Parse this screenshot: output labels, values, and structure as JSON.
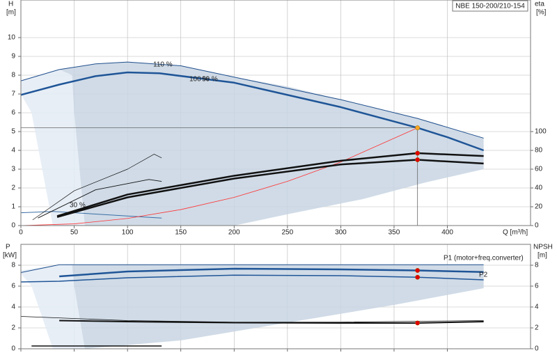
{
  "chart_data": [
    {
      "type": "line",
      "legend_box": "NBE 150-200/210-154",
      "x_label": "Q [m³/h]",
      "y_label": "H",
      "y_unit": "[m]",
      "y2_label": "eta",
      "y2_unit": "[%]",
      "xlim": [
        0,
        478
      ],
      "xticks": [
        0,
        50,
        100,
        150,
        200,
        250,
        300,
        350,
        400
      ],
      "xtick_labels": true,
      "ylim": [
        0,
        12
      ],
      "yticks": [
        0,
        1,
        2,
        3,
        4,
        5,
        6,
        7,
        8,
        9,
        10
      ],
      "y2lim": [
        0,
        240
      ],
      "y2ticks": [
        0,
        20,
        40,
        60,
        80,
        100
      ],
      "grid": true,
      "annotations": [
        "110 %",
        "100 %",
        "90 %",
        "30 %"
      ],
      "series": [
        {
          "kind": "area",
          "color": "#e3ebf4",
          "x": [
            0,
            36,
            48,
            50,
            55,
            60,
            30,
            20,
            10,
            0
          ],
          "values": [
            7.7,
            8.3,
            8.0,
            6,
            3,
            0,
            0,
            3,
            6,
            7.0
          ]
        },
        {
          "kind": "area",
          "color": "#c8d5e3",
          "x": [
            36,
            70,
            100,
            150,
            200,
            250,
            300,
            372,
            434,
            434,
            380,
            320,
            250,
            200,
            60,
            55,
            50,
            48
          ],
          "values": [
            8.3,
            8.6,
            8.7,
            8.5,
            7.9,
            7.4,
            6.7,
            5.7,
            4.65,
            3.0,
            2.3,
            1.4,
            0.6,
            0,
            0,
            3,
            6,
            8.0
          ]
        },
        {
          "kind": "line",
          "color": "#1f4e8c",
          "width": 1,
          "x": [
            0,
            36,
            70,
            100,
            150,
            200,
            300,
            372,
            434
          ],
          "values": [
            7.7,
            8.3,
            8.6,
            8.7,
            8.5,
            7.9,
            6.7,
            5.7,
            4.65
          ]
        },
        {
          "kind": "line",
          "color": "#1f5597",
          "width": 2.5,
          "x": [
            0,
            36,
            70,
            100,
            130,
            200,
            300,
            372,
            400,
            434
          ],
          "values": [
            6.95,
            7.5,
            7.95,
            8.15,
            8.1,
            7.6,
            6.3,
            5.2,
            4.7,
            4.0
          ]
        },
        {
          "kind": "line",
          "color": "#3a6ea5",
          "width": 1,
          "x": [
            0,
            30,
            132
          ],
          "values": [
            0.68,
            0.75,
            0.4
          ]
        },
        {
          "kind": "line",
          "color": "#ff3030",
          "width": 0.8,
          "x": [
            0,
            50,
            100,
            150,
            200,
            250,
            300,
            372
          ],
          "values": [
            0,
            0.09,
            0.38,
            0.85,
            1.5,
            2.35,
            3.38,
            5.2
          ]
        },
        {
          "kind": "line",
          "axis": "y2",
          "color": "#111",
          "width": 2.5,
          "x": [
            34,
            100,
            200,
            300,
            372,
            434
          ],
          "values": [
            10,
            33,
            53,
            69,
            77,
            74
          ]
        },
        {
          "kind": "line",
          "axis": "y2",
          "color": "#111",
          "width": 2.5,
          "x": [
            34,
            100,
            200,
            300,
            372,
            434
          ],
          "values": [
            9,
            30,
            50,
            65,
            70,
            66
          ]
        },
        {
          "kind": "line",
          "axis": "y2",
          "color": "#111",
          "width": 0.7,
          "x": [
            11,
            50,
            100,
            125,
            132
          ],
          "values": [
            6,
            37,
            60,
            76,
            72
          ]
        },
        {
          "kind": "line",
          "axis": "y2",
          "color": "#111",
          "width": 0.9,
          "x": [
            16,
            70,
            120,
            132
          ],
          "values": [
            8,
            38,
            49,
            47
          ]
        },
        {
          "kind": "scatter",
          "color": "#f5a623",
          "guides": true,
          "x": [
            372
          ],
          "values": [
            5.2
          ]
        },
        {
          "kind": "scatter",
          "axis": "y2",
          "color": "#e00000",
          "x": [
            372,
            372
          ],
          "values": [
            77,
            70
          ]
        }
      ]
    },
    {
      "type": "line",
      "y_label": "P",
      "y_unit": "[kW]",
      "y2_label": "NPSH",
      "y2_unit": "[m]",
      "xlim": [
        0,
        478
      ],
      "xticks": [
        0,
        50,
        100,
        150,
        200,
        250,
        300,
        350,
        400
      ],
      "xtick_labels": false,
      "ylim": [
        0,
        10
      ],
      "yticks": [
        0,
        2,
        4,
        6,
        8
      ],
      "y2lim": [
        0,
        10
      ],
      "y2ticks": [
        0,
        2,
        4,
        6,
        8
      ],
      "grid": true,
      "annotations": [
        "P1 (motor+freq.converter)",
        "P2"
      ],
      "series": [
        {
          "kind": "area",
          "color": "#e3ebf4",
          "x": [
            0,
            36,
            48,
            50,
            55,
            60,
            30,
            20,
            10,
            0
          ],
          "values": [
            7.5,
            8.05,
            8.0,
            6,
            3,
            0,
            0,
            3,
            6,
            7.2
          ]
        },
        {
          "kind": "area",
          "color": "#c8d5e3",
          "x": [
            36,
            434,
            434,
            350,
            250,
            150,
            60,
            55,
            50,
            48
          ],
          "values": [
            8.05,
            8.05,
            5.8,
            4.2,
            2.5,
            0.8,
            0,
            3,
            6,
            8.0
          ]
        },
        {
          "kind": "line",
          "color": "#1f4e8c",
          "width": 1,
          "x": [
            0,
            36,
            434
          ],
          "values": [
            7.3,
            8.05,
            8.05
          ]
        },
        {
          "kind": "line",
          "color": "#1f5597",
          "width": 2.5,
          "x": [
            36,
            100,
            200,
            300,
            372,
            434
          ],
          "values": [
            6.93,
            7.4,
            7.67,
            7.6,
            7.5,
            7.35
          ]
        },
        {
          "kind": "line",
          "color": "#1f5597",
          "width": 1.5,
          "x": [
            0,
            36,
            100,
            200,
            300,
            372,
            434
          ],
          "values": [
            6.4,
            6.47,
            6.8,
            7.05,
            7.0,
            6.85,
            6.6
          ]
        },
        {
          "kind": "line",
          "axis": "y2",
          "color": "#111",
          "width": 0.8,
          "x": [
            0,
            100,
            200,
            300,
            434
          ],
          "values": [
            3.1,
            2.7,
            2.55,
            2.55,
            2.7
          ]
        },
        {
          "kind": "line",
          "axis": "y2",
          "color": "#111",
          "width": 2,
          "x": [
            36,
            100,
            200,
            300,
            372,
            434
          ],
          "values": [
            2.7,
            2.6,
            2.5,
            2.47,
            2.47,
            2.6
          ]
        },
        {
          "kind": "line",
          "color": "#111",
          "width": 1.5,
          "x": [
            10,
            132
          ],
          "values": [
            0.27,
            0.27
          ]
        },
        {
          "kind": "scatter",
          "color": "#e00000",
          "x": [
            372,
            372
          ],
          "values": [
            7.5,
            6.85
          ]
        },
        {
          "kind": "scatter",
          "axis": "y2",
          "color": "#e00000",
          "x": [
            372
          ],
          "values": [
            2.47
          ]
        }
      ]
    }
  ]
}
